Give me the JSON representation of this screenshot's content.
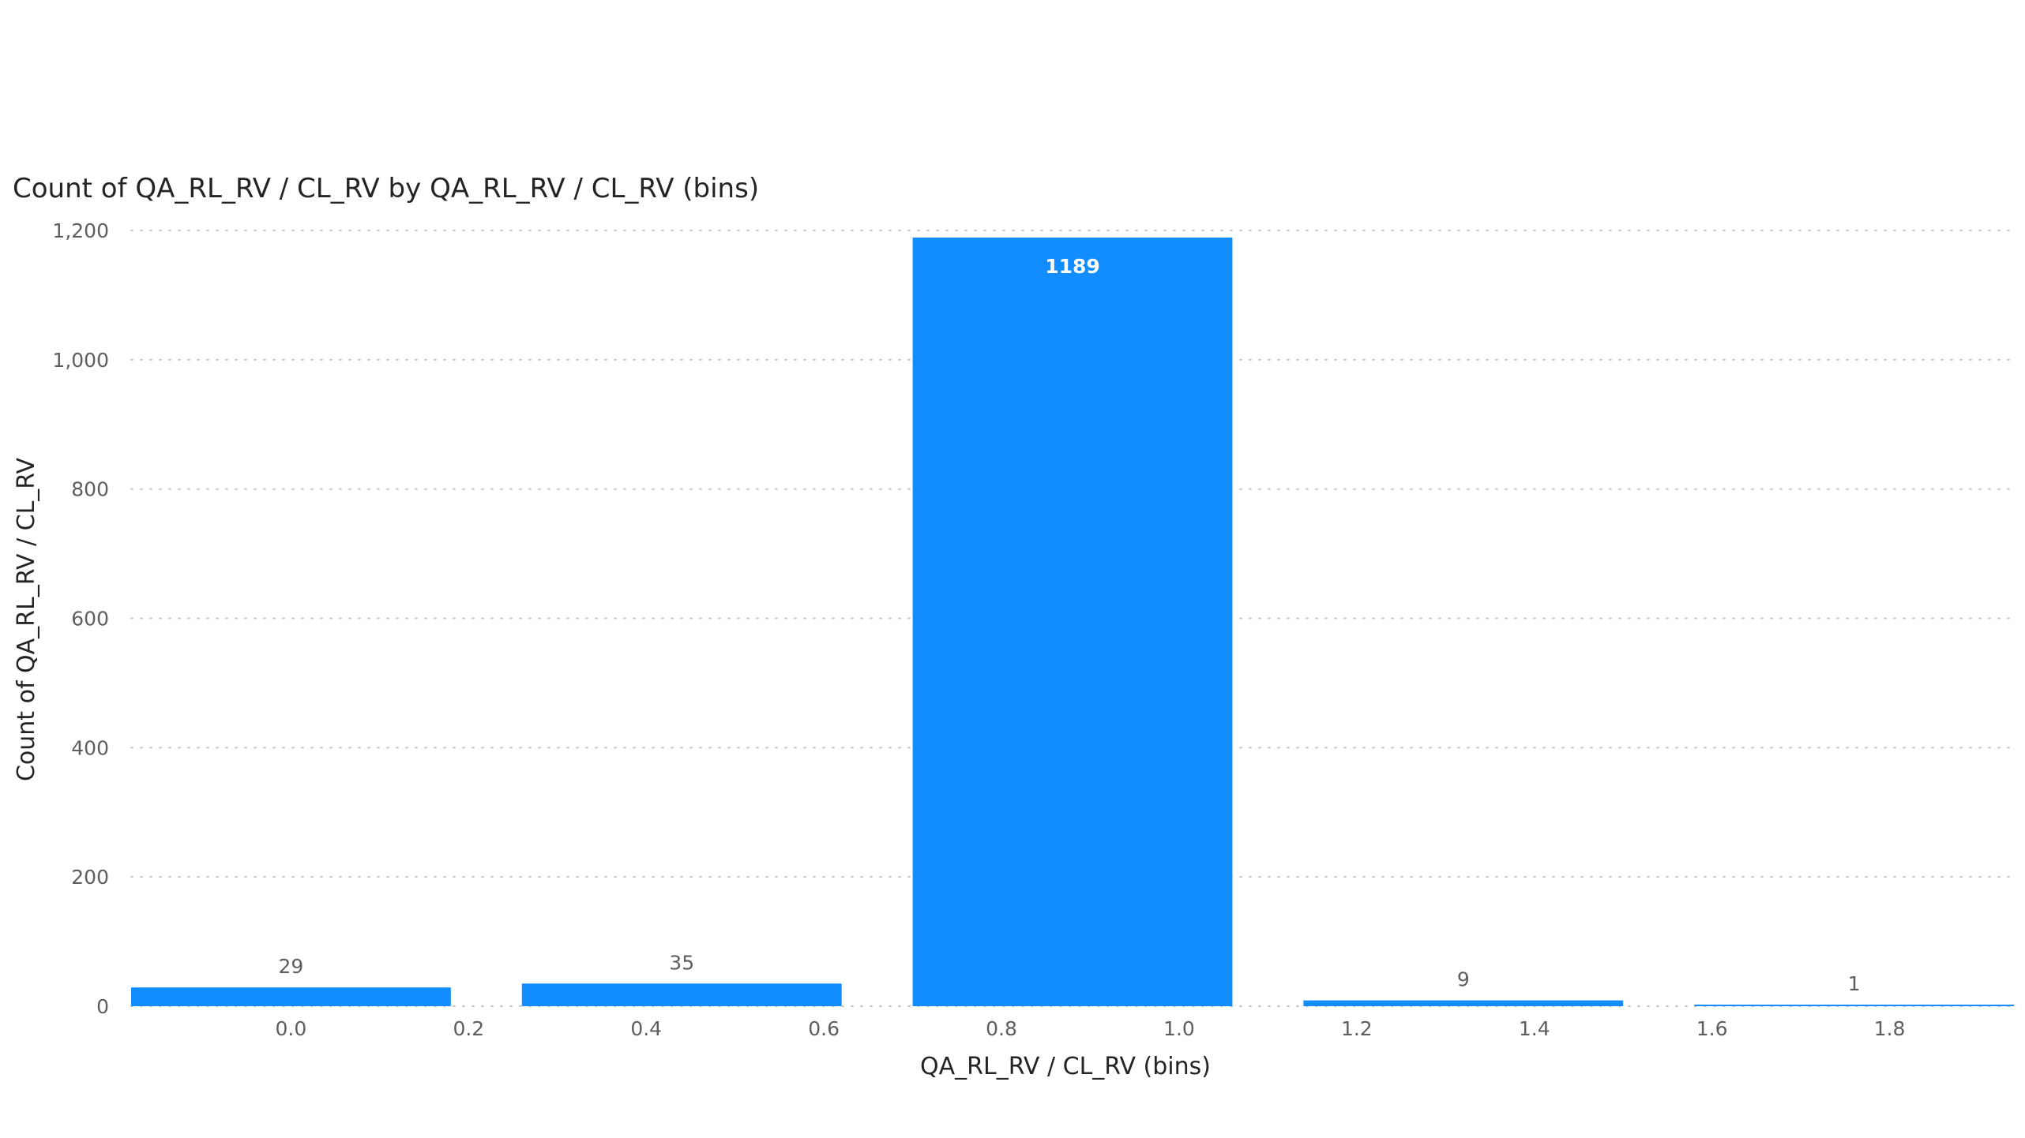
{
  "chart_data": {
    "type": "bar",
    "title": "Count of QA_RL_RV / CL_RV by QA_RL_RV / CL_RV (bins)",
    "xlabel": "QA_RL_RV / CL_RV (bins)",
    "ylabel": "Count of QA_RL_RV / CL_RV",
    "bins": [
      {
        "start": -0.18,
        "end": 0.18,
        "value": 29
      },
      {
        "start": 0.26,
        "end": 0.62,
        "value": 35
      },
      {
        "start": 0.7,
        "end": 1.06,
        "value": 1189
      },
      {
        "start": 1.14,
        "end": 1.5,
        "value": 9
      },
      {
        "start": 1.58,
        "end": 1.94,
        "value": 1
      }
    ],
    "data_labels": [
      "29",
      "35",
      "1189",
      "9",
      "1"
    ],
    "xlim": [
      -0.18,
      1.94
    ],
    "ylim": [
      0,
      1200
    ],
    "y_ticks": [
      {
        "value": 0,
        "label": "0"
      },
      {
        "value": 200,
        "label": "200"
      },
      {
        "value": 400,
        "label": "400"
      },
      {
        "value": 600,
        "label": "600"
      },
      {
        "value": 800,
        "label": "800"
      },
      {
        "value": 1000,
        "label": "1,000"
      },
      {
        "value": 1200,
        "label": "1,200"
      }
    ],
    "x_ticks": [
      {
        "value": 0.0,
        "label": "0.0"
      },
      {
        "value": 0.2,
        "label": "0.2"
      },
      {
        "value": 0.4,
        "label": "0.4"
      },
      {
        "value": 0.6,
        "label": "0.6"
      },
      {
        "value": 0.8,
        "label": "0.8"
      },
      {
        "value": 1.0,
        "label": "1.0"
      },
      {
        "value": 1.2,
        "label": "1.2"
      },
      {
        "value": 1.4,
        "label": "1.4"
      },
      {
        "value": 1.6,
        "label": "1.6"
      },
      {
        "value": 1.8,
        "label": "1.8"
      }
    ],
    "bar_color": "#118DFF",
    "gridlines": true,
    "legend": "none"
  }
}
